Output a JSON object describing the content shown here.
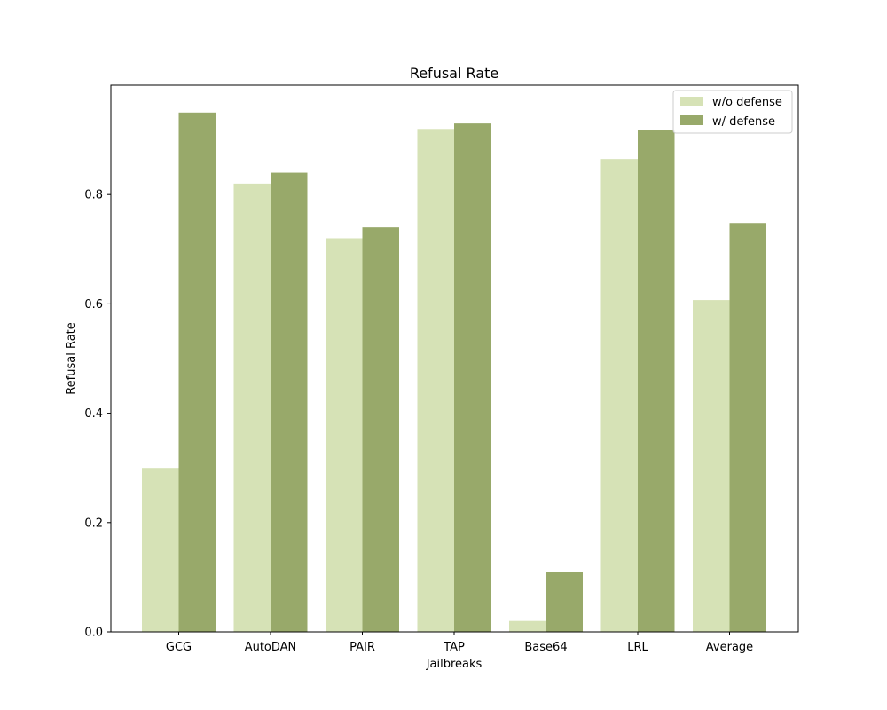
{
  "chart_data": {
    "type": "bar",
    "title": "Refusal Rate",
    "xlabel": "Jailbreaks",
    "ylabel": "Refusal Rate",
    "categories": [
      "GCG",
      "AutoDAN",
      "PAIR",
      "TAP",
      "Base64",
      "LRL",
      "Average"
    ],
    "series": [
      {
        "name": "w/o defense",
        "color": "#d6e2b6",
        "values": [
          0.3,
          0.82,
          0.72,
          0.92,
          0.02,
          0.865,
          0.607
        ]
      },
      {
        "name": "w/ defense",
        "color": "#98a96a",
        "values": [
          0.95,
          0.84,
          0.74,
          0.93,
          0.11,
          0.918,
          0.748
        ]
      }
    ],
    "ylim": [
      0,
      1.0
    ],
    "yticks": [
      "0.0",
      "0.2",
      "0.4",
      "0.6",
      "0.8"
    ],
    "grid": false,
    "legend_position": "top-right"
  }
}
